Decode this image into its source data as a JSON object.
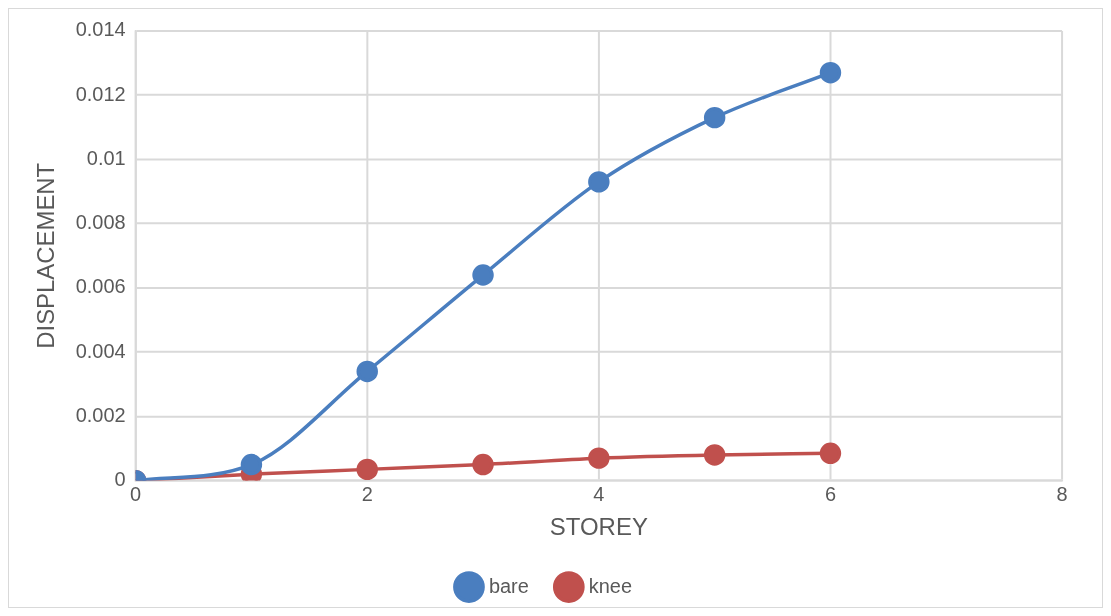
{
  "chart_data": {
    "type": "line",
    "xlabel": "STOREY",
    "ylabel": "DISPLACEMENT",
    "x": [
      0,
      1,
      2,
      3,
      4,
      5,
      6
    ],
    "series": [
      {
        "name": "bare",
        "color": "#4a7ebf",
        "values": [
          0,
          0.0005,
          0.0034,
          0.0064,
          0.0093,
          0.0113,
          0.0127
        ]
      },
      {
        "name": "knee",
        "color": "#c0504d",
        "values": [
          0,
          0.0002,
          0.00035,
          0.0005,
          0.0007,
          0.0008,
          0.00085
        ]
      }
    ],
    "xlim": [
      0,
      8
    ],
    "xticks": [
      0,
      2,
      4,
      6,
      8
    ],
    "ylim": [
      0,
      0.014
    ],
    "yticks": [
      0,
      0.002,
      0.004,
      0.006,
      0.008,
      0.01,
      0.012,
      0.014
    ],
    "grid": true,
    "legend": "bottom",
    "marker": "circle",
    "line_style": "solid"
  }
}
